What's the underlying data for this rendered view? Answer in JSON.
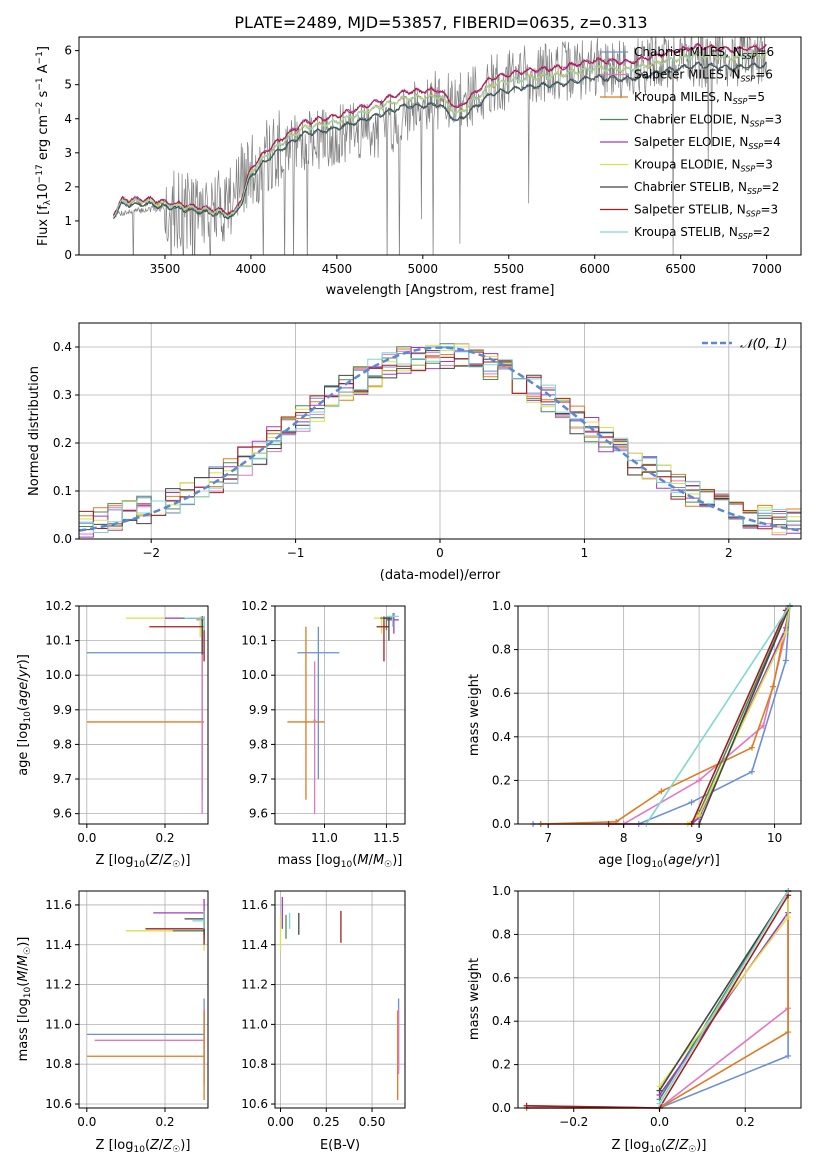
{
  "figure": {
    "title": "PLATE=2489, MJD=53857, FIBERID=0635, z=0.313"
  },
  "colors": {
    "chabrier_miles": "#6a8fd8",
    "salpeter_miles": "#e377c2",
    "kroupa_miles": "#e07b21",
    "chabrier_elodie": "#4d8a57",
    "salpeter_elodie": "#a23bc4",
    "kroupa_elodie": "#d8e24a",
    "chabrier_stelib": "#454545",
    "salpeter_stelib": "#a41e1e",
    "kroupa_stelib": "#7fd8d0",
    "data": "#808080",
    "normal": "#5b87d6"
  },
  "legend_entries": [
    {
      "label": "Chabrier MILES, N",
      "sub": "SSP",
      "tail": "=6",
      "color": "#6a8fd8"
    },
    {
      "label": "Salpeter MILES, N",
      "sub": "SSP",
      "tail": "=6",
      "color": "#e377c2"
    },
    {
      "label": "Kroupa MILES, N",
      "sub": "SSP",
      "tail": "=5",
      "color": "#e07b21"
    },
    {
      "label": "Chabrier ELODIE, N",
      "sub": "SSP",
      "tail": "=3",
      "color": "#4d8a57"
    },
    {
      "label": "Salpeter ELODIE, N",
      "sub": "SSP",
      "tail": "=4",
      "color": "#a23bc4"
    },
    {
      "label": "Kroupa ELODIE, N",
      "sub": "SSP",
      "tail": "=3",
      "color": "#d8e24a"
    },
    {
      "label": "Chabrier STELIB, N",
      "sub": "SSP",
      "tail": "=2",
      "color": "#454545"
    },
    {
      "label": "Salpeter STELIB, N",
      "sub": "SSP",
      "tail": "=3",
      "color": "#a41e1e"
    },
    {
      "label": "Kroupa STELIB, N",
      "sub": "SSP",
      "tail": "=2",
      "color": "#7fd8d0"
    }
  ],
  "chart_data": [
    {
      "id": "spectrum",
      "type": "line",
      "xlabel": "wavelength [Angstrom, rest frame]",
      "ylabel": "Flux [f_λ 10^-17 erg cm^-2 s^-1 A^-1]",
      "xlim": [
        3000,
        7200
      ],
      "ylim": [
        0,
        6.4
      ],
      "xticks": [
        3500,
        4000,
        4500,
        5000,
        5500,
        6000,
        6500,
        7000
      ],
      "yticks": [
        0,
        1,
        2,
        3,
        4,
        5,
        6
      ],
      "grid": false,
      "legend": "top-right",
      "model_anchors": {
        "x": [
          3200,
          3250,
          3400,
          3600,
          3800,
          3900,
          3950,
          4000,
          4100,
          4300,
          4500,
          4700,
          4900,
          5100,
          5200,
          5400,
          5600,
          5800,
          6000,
          6200,
          6400,
          6600,
          6800,
          7000
        ],
        "y": [
          1.2,
          1.6,
          1.6,
          1.45,
          1.3,
          1.2,
          1.7,
          2.5,
          3.05,
          3.8,
          4.0,
          4.35,
          4.7,
          4.75,
          4.2,
          5.1,
          5.3,
          5.4,
          5.6,
          5.55,
          5.8,
          6.0,
          5.9,
          6.0
        ]
      },
      "data_anchors": {
        "x": [
          3200,
          3500,
          3800,
          4000,
          4200,
          4500,
          4800,
          5000,
          5200,
          5400,
          5600,
          5800,
          6000,
          6200,
          6400,
          6600,
          6800,
          7000
        ],
        "y": [
          1.2,
          1.4,
          1.3,
          2.4,
          3.2,
          3.5,
          3.8,
          4.6,
          4.4,
          5.0,
          5.3,
          5.4,
          5.5,
          5.5,
          5.7,
          5.8,
          5.8,
          5.9
        ]
      }
    },
    {
      "id": "residuals",
      "type": "bar",
      "xlabel": "(data-model)/error",
      "ylabel": "Normed distribution",
      "xlim": [
        -2.5,
        2.5
      ],
      "ylim": [
        0,
        0.45
      ],
      "xticks": [
        -2,
        -1,
        0,
        1,
        2
      ],
      "yticks": [
        0.0,
        0.1,
        0.2,
        0.3,
        0.4
      ],
      "grid": true,
      "bin_width": 0.1,
      "legend": "top-right",
      "curve_label": "𝒩(0, 1)"
    },
    {
      "id": "age_vs_Z",
      "type": "scatter",
      "xlabel": "Z [log10(Z/Z☉)]",
      "ylabel": "age [log10(age/yr)]",
      "xlim": [
        -0.02,
        0.31
      ],
      "ylim": [
        9.57,
        10.2
      ],
      "xticks": [
        0.0,
        0.2
      ],
      "yticks": [
        9.6,
        9.7,
        9.8,
        9.9,
        10.0,
        10.1,
        10.2
      ],
      "grid": true,
      "points": [
        {
          "series": "chabrier_miles",
          "x": 0.295,
          "y": 10.065,
          "x_lo": 0.0,
          "x_hi": 0.3,
          "y_lo": 9.66,
          "y_hi": 10.17
        },
        {
          "series": "kroupa_miles",
          "x": 0.295,
          "y": 9.865,
          "x_lo": 0.0,
          "x_hi": 0.3,
          "y_lo": 9.64,
          "y_hi": 10.17
        },
        {
          "series": "salpeter_miles",
          "x": 0.295,
          "y": 10.16,
          "x_lo": 0.28,
          "x_hi": 0.3,
          "y_lo": 9.6,
          "y_hi": 10.17
        },
        {
          "series": "kroupa_elodie",
          "x": 0.29,
          "y": 10.165,
          "x_lo": 0.1,
          "x_hi": 0.3,
          "y_lo": 10.11,
          "y_hi": 10.17
        },
        {
          "series": "salpeter_elodie",
          "x": 0.295,
          "y": 10.165,
          "x_lo": 0.2,
          "x_hi": 0.3,
          "y_lo": 10.12,
          "y_hi": 10.17
        },
        {
          "series": "chabrier_elodie",
          "x": 0.295,
          "y": 10.165,
          "x_lo": 0.24,
          "x_hi": 0.3,
          "y_lo": 10.1,
          "y_hi": 10.17
        },
        {
          "series": "salpeter_stelib",
          "x": 0.3,
          "y": 10.14,
          "x_lo": 0.16,
          "x_hi": 0.3,
          "y_lo": 10.04,
          "y_hi": 10.17
        },
        {
          "series": "chabrier_stelib",
          "x": 0.295,
          "y": 10.165,
          "x_lo": 0.26,
          "x_hi": 0.3,
          "y_lo": 10.06,
          "y_hi": 10.17
        },
        {
          "series": "kroupa_stelib",
          "x": 0.3,
          "y": 10.165,
          "x_lo": 0.25,
          "x_hi": 0.3,
          "y_lo": 10.13,
          "y_hi": 10.17
        }
      ]
    },
    {
      "id": "age_vs_mass",
      "type": "scatter",
      "xlabel": "mass [log10(M/M☉)]",
      "ylabel": "",
      "xlim": [
        10.6,
        11.65
      ],
      "ylim": [
        9.57,
        10.2
      ],
      "xticks": [
        11.0,
        11.5
      ],
      "yticks": [
        9.6,
        9.7,
        9.8,
        9.9,
        10.0,
        10.1,
        10.2
      ],
      "grid": true,
      "points": [
        {
          "series": "chabrier_miles",
          "x": 10.95,
          "y": 10.065,
          "x_lo": 10.78,
          "x_hi": 11.12,
          "y_lo": 9.7,
          "y_hi": 10.14
        },
        {
          "series": "kroupa_miles",
          "x": 10.85,
          "y": 9.865,
          "x_lo": 10.7,
          "x_hi": 11.0,
          "y_lo": 9.64,
          "y_hi": 10.14
        },
        {
          "series": "salpeter_miles",
          "x": 10.92,
          "y": 9.87,
          "x_lo": 10.91,
          "x_hi": 10.93,
          "y_lo": 9.6,
          "y_hi": 10.04
        },
        {
          "series": "kroupa_elodie",
          "x": 11.46,
          "y": 10.165,
          "x_lo": 11.4,
          "x_hi": 11.52,
          "y_lo": 10.12,
          "y_hi": 10.17
        },
        {
          "series": "salpeter_elodie",
          "x": 11.56,
          "y": 10.16,
          "x_lo": 11.5,
          "x_hi": 11.6,
          "y_lo": 10.12,
          "y_hi": 10.18
        },
        {
          "series": "chabrier_elodie",
          "x": 11.5,
          "y": 10.165,
          "x_lo": 11.45,
          "x_hi": 11.55,
          "y_lo": 10.13,
          "y_hi": 10.17
        },
        {
          "series": "salpeter_stelib",
          "x": 11.48,
          "y": 10.14,
          "x_lo": 11.42,
          "x_hi": 11.52,
          "y_lo": 10.04,
          "y_hi": 10.17
        },
        {
          "series": "chabrier_stelib",
          "x": 11.52,
          "y": 10.165,
          "x_lo": 11.48,
          "x_hi": 11.56,
          "y_lo": 10.1,
          "y_hi": 10.17
        },
        {
          "series": "kroupa_stelib",
          "x": 11.55,
          "y": 10.17,
          "x_lo": 11.5,
          "x_hi": 11.6,
          "y_lo": 10.14,
          "y_hi": 10.18
        }
      ]
    },
    {
      "id": "weight_vs_age",
      "type": "line",
      "xlabel": "age [log10(age/yr)]",
      "ylabel": "mass weight",
      "xlim": [
        6.6,
        10.35
      ],
      "ylim": [
        0,
        1.0
      ],
      "xticks": [
        7,
        8,
        9,
        10
      ],
      "yticks": [
        0.0,
        0.2,
        0.4,
        0.6,
        0.8,
        1.0
      ],
      "grid": true,
      "series": [
        {
          "key": "chabrier_miles",
          "x": [
            6.8,
            8.2,
            8.9,
            9.7,
            10.15,
            10.2
          ],
          "y": [
            0.0,
            0.0,
            0.1,
            0.24,
            0.75,
            1.0
          ]
        },
        {
          "key": "salpeter_miles",
          "x": [
            6.9,
            8.0,
            9.0,
            9.85,
            10.15,
            10.2
          ],
          "y": [
            0.0,
            0.0,
            0.2,
            0.45,
            0.88,
            1.0
          ]
        },
        {
          "key": "kroupa_miles",
          "x": [
            6.9,
            7.9,
            8.5,
            9.7,
            9.98,
            10.2
          ],
          "y": [
            0.0,
            0.01,
            0.15,
            0.35,
            0.63,
            1.0
          ]
        },
        {
          "key": "chabrier_elodie",
          "x": [
            8.9,
            9.0,
            10.2
          ],
          "y": [
            0.0,
            0.05,
            1.0
          ]
        },
        {
          "key": "salpeter_elodie",
          "x": [
            8.9,
            9.0,
            10.15,
            10.2
          ],
          "y": [
            0.0,
            0.03,
            0.9,
            1.0
          ]
        },
        {
          "key": "kroupa_elodie",
          "x": [
            8.85,
            9.0,
            10.15,
            10.2
          ],
          "y": [
            0.0,
            0.04,
            0.88,
            1.0
          ]
        },
        {
          "key": "chabrier_stelib",
          "x": [
            9.0,
            10.2
          ],
          "y": [
            0.0,
            1.0
          ]
        },
        {
          "key": "salpeter_stelib",
          "x": [
            7.8,
            8.9,
            10.15,
            10.2
          ],
          "y": [
            0.0,
            0.0,
            0.98,
            1.0
          ]
        },
        {
          "key": "kroupa_stelib",
          "x": [
            8.3,
            10.2
          ],
          "y": [
            0.0,
            1.0
          ]
        }
      ]
    },
    {
      "id": "mass_vs_Z",
      "type": "scatter",
      "xlabel": "Z [log10(Z/Z☉)]",
      "ylabel": "mass [log10(M/M☉)]",
      "xlim": [
        -0.02,
        0.31
      ],
      "ylim": [
        10.58,
        11.67
      ],
      "xticks": [
        0.0,
        0.2
      ],
      "yticks": [
        10.6,
        10.8,
        11.0,
        11.2,
        11.4,
        11.6
      ],
      "grid": true,
      "points": [
        {
          "series": "chabrier_miles",
          "x": 0.3,
          "y": 10.95,
          "x_lo": 0.0,
          "x_hi": 0.3,
          "y_lo": 10.8,
          "y_hi": 11.13
        },
        {
          "series": "salpeter_miles",
          "x": 0.3,
          "y": 10.92,
          "x_lo": 0.02,
          "x_hi": 0.3,
          "y_lo": 10.7,
          "y_hi": 11.08
        },
        {
          "series": "kroupa_miles",
          "x": 0.3,
          "y": 10.84,
          "x_lo": 0.0,
          "x_hi": 0.3,
          "y_lo": 10.62,
          "y_hi": 11.07
        },
        {
          "series": "kroupa_elodie",
          "x": 0.3,
          "y": 11.47,
          "x_lo": 0.1,
          "x_hi": 0.3,
          "y_lo": 11.37,
          "y_hi": 11.52
        },
        {
          "series": "salpeter_elodie",
          "x": 0.3,
          "y": 11.56,
          "x_lo": 0.17,
          "x_hi": 0.3,
          "y_lo": 11.5,
          "y_hi": 11.63
        },
        {
          "series": "chabrier_elodie",
          "x": 0.3,
          "y": 11.47,
          "x_lo": 0.22,
          "x_hi": 0.3,
          "y_lo": 11.43,
          "y_hi": 11.52
        },
        {
          "series": "salpeter_stelib",
          "x": 0.3,
          "y": 11.48,
          "x_lo": 0.15,
          "x_hi": 0.3,
          "y_lo": 11.4,
          "y_hi": 11.56
        },
        {
          "series": "chabrier_stelib",
          "x": 0.3,
          "y": 11.53,
          "x_lo": 0.25,
          "x_hi": 0.3,
          "y_lo": 11.45,
          "y_hi": 11.57
        },
        {
          "series": "kroupa_stelib",
          "x": 0.3,
          "y": 11.52,
          "x_lo": 0.27,
          "x_hi": 0.3,
          "y_lo": 11.48,
          "y_hi": 11.57
        }
      ]
    },
    {
      "id": "mass_vs_ebv",
      "type": "scatter",
      "xlabel": "E(B-V)",
      "ylabel": "",
      "xlim": [
        -0.03,
        0.68
      ],
      "ylim": [
        10.58,
        11.67
      ],
      "xticks": [
        0.0,
        0.25,
        0.5
      ],
      "yticks": [
        10.6,
        10.8,
        11.0,
        11.2,
        11.4,
        11.6
      ],
      "grid": true,
      "points": [
        {
          "series": "chabrier_miles",
          "x": 0.645,
          "y": 10.95,
          "y_lo": 10.77,
          "y_hi": 11.13
        },
        {
          "series": "kroupa_miles",
          "x": 0.64,
          "y": 10.84,
          "y_lo": 10.62,
          "y_hi": 11.07
        },
        {
          "series": "salpeter_miles",
          "x": 0.645,
          "y": 10.92,
          "y_lo": 10.75,
          "y_hi": 11.08
        },
        {
          "series": "kroupa_elodie",
          "x": 0.0,
          "y": 11.46,
          "y_lo": 11.37,
          "y_hi": 11.55
        },
        {
          "series": "salpeter_elodie",
          "x": 0.01,
          "y": 11.55,
          "y_lo": 11.48,
          "y_hi": 11.64
        },
        {
          "series": "chabrier_elodie",
          "x": 0.03,
          "y": 11.47,
          "y_lo": 11.43,
          "y_hi": 11.55
        },
        {
          "series": "salpeter_stelib",
          "x": 0.33,
          "y": 11.48,
          "y_lo": 11.41,
          "y_hi": 11.57
        },
        {
          "series": "chabrier_stelib",
          "x": 0.1,
          "y": 11.5,
          "y_lo": 11.45,
          "y_hi": 11.56
        },
        {
          "series": "kroupa_stelib",
          "x": 0.05,
          "y": 11.52,
          "y_lo": 11.48,
          "y_hi": 11.56
        }
      ]
    },
    {
      "id": "weight_vs_Z",
      "type": "line",
      "xlabel": "Z [log10(Z/Z☉)]",
      "ylabel": "mass weight",
      "xlim": [
        -0.33,
        0.33
      ],
      "ylim": [
        0,
        1.0
      ],
      "xticks": [
        -0.2,
        0.0,
        0.2
      ],
      "yticks": [
        0.0,
        0.2,
        0.4,
        0.6,
        0.8,
        1.0
      ],
      "grid": true,
      "series": [
        {
          "key": "chabrier_miles",
          "x": [
            -0.31,
            0.0,
            0.3,
            0.3
          ],
          "y": [
            0.0,
            0.0,
            0.24,
            1.0
          ]
        },
        {
          "key": "salpeter_miles",
          "x": [
            -0.31,
            0.0,
            0.3,
            0.3
          ],
          "y": [
            0.01,
            0.0,
            0.46,
            1.0
          ]
        },
        {
          "key": "kroupa_miles",
          "x": [
            -0.31,
            0.0,
            0.3,
            0.3
          ],
          "y": [
            0.0,
            0.0,
            0.35,
            1.0
          ]
        },
        {
          "key": "chabrier_elodie",
          "x": [
            0.0,
            0.3
          ],
          "y": [
            0.04,
            1.0
          ]
        },
        {
          "key": "salpeter_elodie",
          "x": [
            0.0,
            0.3,
            0.3
          ],
          "y": [
            0.06,
            0.9,
            1.0
          ]
        },
        {
          "key": "kroupa_elodie",
          "x": [
            0.0,
            0.3,
            0.3
          ],
          "y": [
            0.1,
            0.88,
            1.0
          ]
        },
        {
          "key": "chabrier_stelib",
          "x": [
            0.0,
            0.3
          ],
          "y": [
            0.08,
            1.0
          ]
        },
        {
          "key": "salpeter_stelib",
          "x": [
            -0.31,
            0.0,
            0.3,
            0.3
          ],
          "y": [
            0.01,
            0.0,
            0.98,
            1.0
          ]
        },
        {
          "key": "kroupa_stelib",
          "x": [
            0.0,
            0.3
          ],
          "y": [
            0.02,
            1.0
          ]
        }
      ]
    }
  ]
}
